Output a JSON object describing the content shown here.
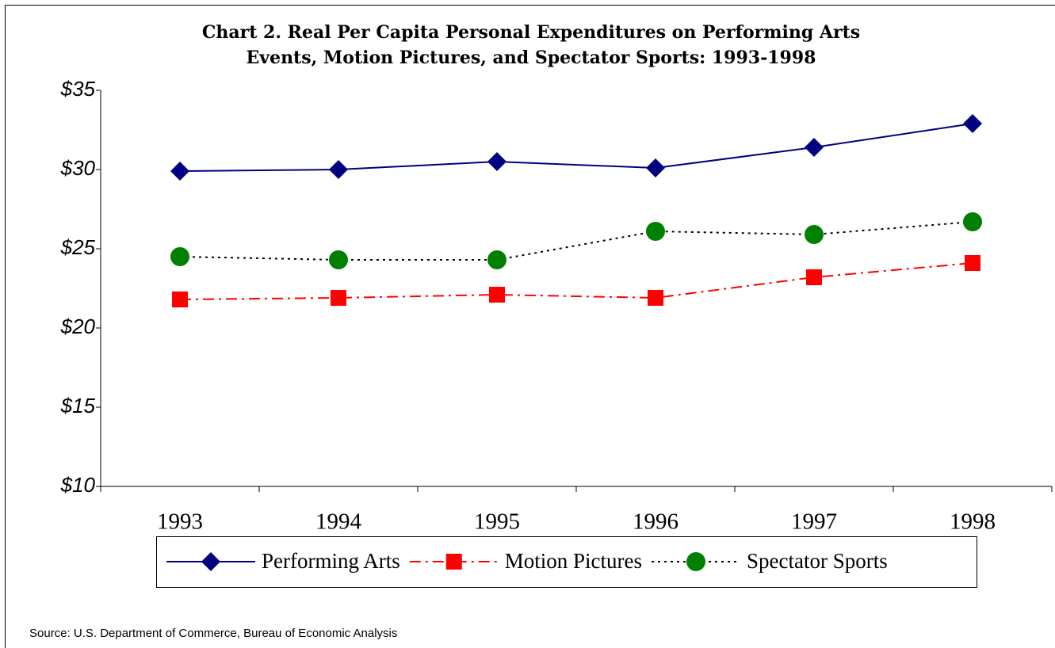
{
  "chart_data": {
    "type": "line",
    "title": [
      "Chart 2. Real Per Capita Personal Expenditures on Performing Arts",
      "Events, Motion Pictures, and Spectator Sports: 1993-1998"
    ],
    "categories": [
      "1993",
      "1994",
      "1995",
      "1996",
      "1997",
      "1998"
    ],
    "series": [
      {
        "name": "Performing Arts",
        "color": "#000080",
        "line_color": "#000080",
        "line_style": "solid",
        "marker": "diamond",
        "values": [
          29.9,
          30.0,
          30.5,
          30.1,
          31.4,
          32.9
        ]
      },
      {
        "name": "Motion Pictures",
        "color": "#ff0000",
        "line_color": "#ff0000",
        "line_style": "dashdot",
        "marker": "square",
        "values": [
          21.8,
          21.9,
          22.1,
          21.9,
          23.2,
          24.1
        ]
      },
      {
        "name": "Spectator Sports",
        "color": "#008000",
        "line_color": "#000000",
        "line_style": "dotted",
        "marker": "circle",
        "values": [
          24.5,
          24.3,
          24.3,
          26.1,
          25.9,
          26.7
        ]
      }
    ],
    "ylim": [
      10,
      35
    ],
    "yticks": [
      {
        "value": 10,
        "label": "$10"
      },
      {
        "value": 15,
        "label": "$15"
      },
      {
        "value": 20,
        "label": "$20"
      },
      {
        "value": 25,
        "label": "$25"
      },
      {
        "value": 30,
        "label": "$30"
      },
      {
        "value": 35,
        "label": "$35"
      }
    ],
    "grid": false,
    "legend": "bottom",
    "source": "Source: U.S. Department of Commerce, Bureau of Economic Analysis"
  }
}
